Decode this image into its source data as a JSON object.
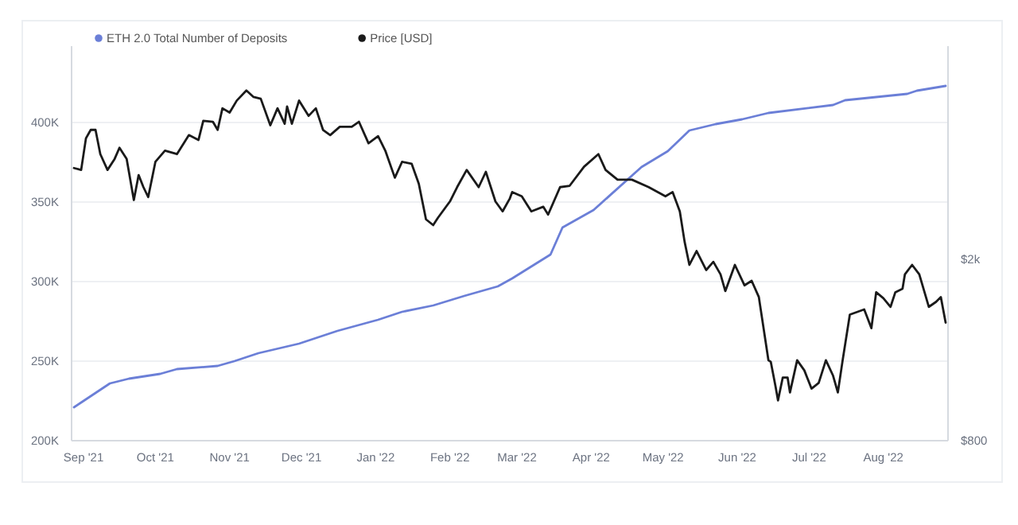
{
  "chart_data": {
    "type": "line",
    "legend": "top left",
    "grid": "y",
    "log": "y2",
    "xlim": [
      "2021-08-27",
      "2022-08-28"
    ],
    "xticks": [
      {
        "value": "2021-09-01",
        "label": "Sep '21"
      },
      {
        "value": "2021-10-01",
        "label": "Oct '21"
      },
      {
        "value": "2021-11-01",
        "label": "Nov '21"
      },
      {
        "value": "2021-12-01",
        "label": "Dec '21"
      },
      {
        "value": "2022-01-01",
        "label": "Jan '22"
      },
      {
        "value": "2022-02-01",
        "label": "Feb '22"
      },
      {
        "value": "2022-03-01",
        "label": "Mar '22"
      },
      {
        "value": "2022-04-01",
        "label": "Apr '22"
      },
      {
        "value": "2022-05-01",
        "label": "May '22"
      },
      {
        "value": "2022-06-01",
        "label": "Jun '22"
      },
      {
        "value": "2022-07-01",
        "label": "Jul '22"
      },
      {
        "value": "2022-08-01",
        "label": "Aug '22"
      }
    ],
    "ylim": [
      200000,
      448000
    ],
    "yticks": [
      {
        "value": 200000,
        "label": "200K"
      },
      {
        "value": 250000,
        "label": "250K"
      },
      {
        "value": 300000,
        "label": "300K"
      },
      {
        "value": 350000,
        "label": "350K"
      },
      {
        "value": 400000,
        "label": "400K"
      }
    ],
    "y2lim": [
      800,
      5840
    ],
    "y2ticks": [
      {
        "value": 800,
        "label": "$800"
      },
      {
        "value": 2000,
        "label": "$2k"
      }
    ],
    "series": [
      {
        "name": "ETH 2.0 Total Number of Deposits",
        "color": "#6b7fd7",
        "x": [
          "2021-08-28",
          "2021-08-31",
          "2021-09-06",
          "2021-09-12",
          "2021-09-20",
          "2021-10-03",
          "2021-10-10",
          "2021-10-27",
          "2021-11-03",
          "2021-11-13",
          "2021-11-30",
          "2021-12-16",
          "2022-01-02",
          "2022-01-12",
          "2022-01-25",
          "2022-02-07",
          "2022-02-21",
          "2022-02-27",
          "2022-03-15",
          "2022-03-20",
          "2022-04-02",
          "2022-04-22",
          "2022-05-03",
          "2022-05-12",
          "2022-05-23",
          "2022-06-03",
          "2022-06-14",
          "2022-07-11",
          "2022-07-16",
          "2022-08-11",
          "2022-08-15",
          "2022-08-27"
        ],
        "values": [
          221000,
          224000,
          230000,
          236000,
          239000,
          242000,
          245000,
          247000,
          250000,
          255000,
          261000,
          269000,
          276000,
          281000,
          285000,
          291000,
          297000,
          302000,
          317000,
          334000,
          345000,
          372000,
          382000,
          395000,
          399000,
          402000,
          406000,
          411000,
          414000,
          418000,
          420000,
          423000
        ]
      },
      {
        "name": "Price [USD]",
        "color": "#1a1a1a",
        "axis": "y2",
        "x": [
          "2021-08-28",
          "2021-08-31",
          "2021-09-02",
          "2021-09-04",
          "2021-09-06",
          "2021-09-08",
          "2021-09-11",
          "2021-09-14",
          "2021-09-16",
          "2021-09-19",
          "2021-09-22",
          "2021-09-24",
          "2021-09-26",
          "2021-09-28",
          "2021-10-01",
          "2021-10-05",
          "2021-10-10",
          "2021-10-15",
          "2021-10-19",
          "2021-10-21",
          "2021-10-25",
          "2021-10-27",
          "2021-10-29",
          "2021-11-01",
          "2021-11-04",
          "2021-11-08",
          "2021-11-11",
          "2021-11-14",
          "2021-11-18",
          "2021-11-21",
          "2021-11-24",
          "2021-11-25",
          "2021-11-27",
          "2021-11-30",
          "2021-12-04",
          "2021-12-07",
          "2021-12-10",
          "2021-12-13",
          "2021-12-17",
          "2021-12-22",
          "2021-12-25",
          "2021-12-29",
          "2022-01-02",
          "2022-01-05",
          "2022-01-09",
          "2022-01-12",
          "2022-01-16",
          "2022-01-19",
          "2022-01-22",
          "2022-01-25",
          "2022-01-27",
          "2022-02-01",
          "2022-02-04",
          "2022-02-08",
          "2022-02-13",
          "2022-02-16",
          "2022-02-20",
          "2022-02-23",
          "2022-02-26",
          "2022-02-27",
          "2022-03-03",
          "2022-03-07",
          "2022-03-12",
          "2022-03-14",
          "2022-03-19",
          "2022-03-23",
          "2022-03-29",
          "2022-04-04",
          "2022-04-07",
          "2022-04-12",
          "2022-04-18",
          "2022-04-25",
          "2022-05-02",
          "2022-05-05",
          "2022-05-08",
          "2022-05-10",
          "2022-05-12",
          "2022-05-15",
          "2022-05-19",
          "2022-05-22",
          "2022-05-25",
          "2022-05-27",
          "2022-05-31",
          "2022-06-04",
          "2022-06-07",
          "2022-06-10",
          "2022-06-14",
          "2022-06-15",
          "2022-06-17",
          "2022-06-18",
          "2022-06-20",
          "2022-06-22",
          "2022-06-23",
          "2022-06-26",
          "2022-06-29",
          "2022-07-02",
          "2022-07-05",
          "2022-07-08",
          "2022-07-11",
          "2022-07-13",
          "2022-07-15",
          "2022-07-18",
          "2022-07-21",
          "2022-07-24",
          "2022-07-27",
          "2022-07-29",
          "2022-08-01",
          "2022-08-04",
          "2022-08-06",
          "2022-08-09",
          "2022-08-10",
          "2022-08-13",
          "2022-08-16",
          "2022-08-20",
          "2022-08-23",
          "2022-08-25",
          "2022-08-27"
        ],
        "values": [
          3160,
          3130,
          3670,
          3830,
          3830,
          3390,
          3130,
          3310,
          3500,
          3310,
          2690,
          3050,
          2870,
          2730,
          3260,
          3450,
          3390,
          3730,
          3640,
          4010,
          3990,
          3830,
          4270,
          4180,
          4440,
          4670,
          4520,
          4480,
          3920,
          4270,
          3950,
          4310,
          3950,
          4440,
          4110,
          4270,
          3830,
          3730,
          3890,
          3890,
          3990,
          3580,
          3710,
          3450,
          3010,
          3260,
          3230,
          2920,
          2440,
          2370,
          2460,
          2670,
          2870,
          3130,
          2870,
          3100,
          2670,
          2540,
          2710,
          2800,
          2740,
          2540,
          2600,
          2500,
          2870,
          2890,
          3180,
          3390,
          3130,
          2980,
          2980,
          2870,
          2740,
          2800,
          2540,
          2180,
          1940,
          2080,
          1890,
          1970,
          1850,
          1700,
          1940,
          1750,
          1790,
          1650,
          1200,
          1190,
          1050,
          980,
          1100,
          1100,
          1020,
          1200,
          1140,
          1040,
          1070,
          1200,
          1110,
          1020,
          1200,
          1510,
          1530,
          1550,
          1410,
          1690,
          1640,
          1570,
          1690,
          1720,
          1850,
          1940,
          1850,
          1570,
          1610,
          1650,
          1450
        ]
      }
    ]
  }
}
